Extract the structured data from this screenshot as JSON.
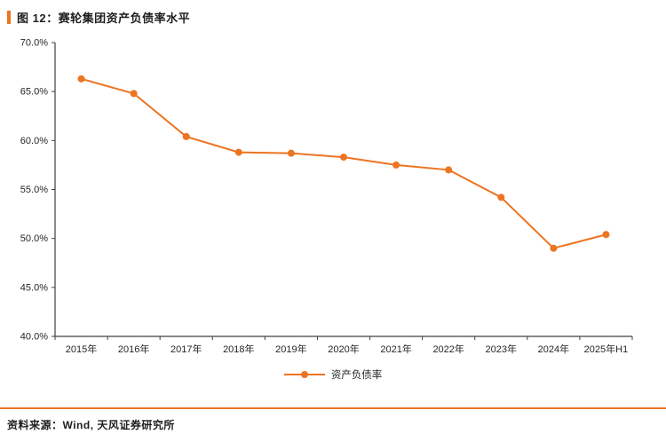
{
  "header": {
    "title": "图 12：赛轮集团资产负债率水平"
  },
  "legend": {
    "label": "资产负债率"
  },
  "footer": {
    "source": "资料来源：Wind, 天风证券研究所"
  },
  "colors": {
    "accent": "#ED7421",
    "axis": "#404040",
    "text": "#262626"
  },
  "chart_data": {
    "type": "line",
    "title": "图 12：赛轮集团资产负债率水平",
    "categories": [
      "2015年",
      "2016年",
      "2017年",
      "2018年",
      "2019年",
      "2020年",
      "2021年",
      "2022年",
      "2023年",
      "2024年",
      "2025年H1"
    ],
    "series": [
      {
        "name": "资产负债率",
        "values": [
          66.3,
          64.8,
          60.4,
          58.8,
          58.7,
          58.3,
          57.5,
          57.0,
          54.2,
          49.0,
          50.4
        ]
      }
    ],
    "ylim": [
      40,
      70
    ],
    "y_tick_step": 5,
    "y_ticks": [
      "70.0%",
      "65.0%",
      "60.0%",
      "55.0%",
      "50.0%",
      "45.0%",
      "40.0%"
    ],
    "grid": false,
    "legend_position": "bottom",
    "line_color": "#ED7421",
    "marker": "circle"
  }
}
